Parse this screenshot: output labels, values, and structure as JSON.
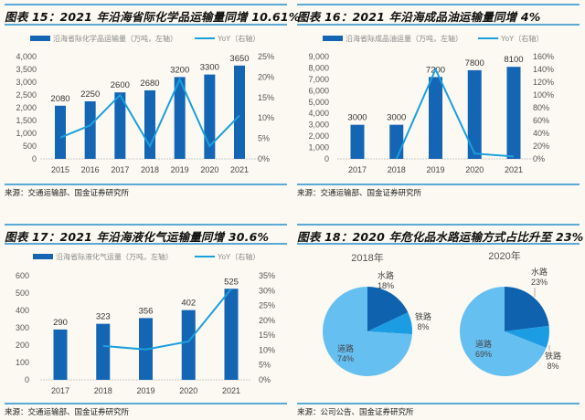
{
  "colors": {
    "bar": "#1565b5",
    "line": "#1aa0dd",
    "pie_water": "#0e62ae",
    "pie_rail": "#1c9ce2",
    "pie_road": "#66bff1",
    "rule": "#5aa9d6"
  },
  "panels": [
    {
      "title": "图表 15：2021 年沿海省际化学品运输量同增 10.61%",
      "source": "来源：交通运输部、国金证券研究所"
    },
    {
      "title": "图表 16：2021 年沿海成品油运输量同增 4%",
      "source": "来源：交通运输部、国金证券研究所"
    },
    {
      "title": "图表 17：2021 年沿海液化气运输量同增 30.6%",
      "source": "来源：交通运输部、国金证券研究所"
    },
    {
      "title": "图表 18：2020 年危化品水路运输方式占比升至 23%",
      "source": "来源：公司公告、国金证券研究所"
    }
  ],
  "chart_data": [
    {
      "type": "bar+line",
      "categories": [
        "2015",
        "2016",
        "2017",
        "2018",
        "2019",
        "2020",
        "2021"
      ],
      "series": [
        {
          "name": "沿海省际化学品运输量（万吨，左轴）",
          "type": "bar",
          "axis": "left",
          "values": [
            2080,
            2250,
            2600,
            2680,
            3200,
            3300,
            3650
          ],
          "labels": [
            "2080",
            "2250",
            "2600",
            "2680",
            "3200",
            "3300",
            "3650"
          ]
        },
        {
          "name": "YoY（右轴）",
          "type": "line",
          "axis": "right",
          "values": [
            5.2,
            8.2,
            15.6,
            3.1,
            19.4,
            3.1,
            10.6
          ]
        }
      ],
      "left_axis": {
        "range": [
          0,
          4000
        ],
        "ticks": [
          "0",
          "500",
          "1,000",
          "1,500",
          "2,000",
          "2,500",
          "3,000",
          "3,500",
          "4,000"
        ]
      },
      "right_axis": {
        "range": [
          0,
          25
        ],
        "ticks": [
          "0%",
          "5%",
          "10%",
          "15%",
          "20%",
          "25%"
        ]
      },
      "legend": "top",
      "grid": false
    },
    {
      "type": "bar+line",
      "categories": [
        "2017",
        "2018",
        "2019",
        "2020",
        "2021"
      ],
      "series": [
        {
          "name": "沿海省际成品油运量（万吨，左轴）",
          "type": "bar",
          "axis": "left",
          "values": [
            3000,
            3000,
            7200,
            7800,
            8100
          ],
          "labels": [
            "3000",
            "3000",
            "7200",
            "7800",
            "8100"
          ]
        },
        {
          "name": "YoY（右轴）",
          "type": "line",
          "axis": "right",
          "values": [
            null,
            0,
            140,
            8.3,
            3.8
          ]
        }
      ],
      "left_axis": {
        "range": [
          0,
          9000
        ],
        "ticks": [
          "0",
          "1,000",
          "2,000",
          "3,000",
          "4,000",
          "5,000",
          "6,000",
          "7,000",
          "8,000",
          "9,000"
        ]
      },
      "right_axis": {
        "range": [
          0,
          160
        ],
        "ticks": [
          "0%",
          "20%",
          "40%",
          "60%",
          "80%",
          "100%",
          "120%",
          "140%",
          "160%"
        ]
      },
      "legend": "top",
      "grid": false
    },
    {
      "type": "bar+line",
      "categories": [
        "2017",
        "2018",
        "2019",
        "2020",
        "2021"
      ],
      "series": [
        {
          "name": "沿海省际液化气运量（万吨，左轴）",
          "type": "bar",
          "axis": "left",
          "values": [
            290,
            323,
            356,
            402,
            525
          ],
          "labels": [
            "290",
            "323",
            "356",
            "402",
            "525"
          ]
        },
        {
          "name": "YoY（右轴）",
          "type": "line",
          "axis": "right",
          "values": [
            null,
            11.4,
            10.2,
            12.9,
            30.6
          ]
        }
      ],
      "left_axis": {
        "range": [
          0,
          600
        ],
        "ticks": [
          "0",
          "100",
          "200",
          "300",
          "400",
          "500",
          "600"
        ]
      },
      "right_axis": {
        "range": [
          0,
          35
        ],
        "ticks": [
          "0%",
          "5%",
          "10%",
          "15%",
          "20%",
          "25%",
          "30%",
          "35%"
        ]
      },
      "legend": "top",
      "grid": false
    },
    {
      "type": "pie",
      "pies": [
        {
          "title": "2018年",
          "slices": [
            {
              "label": "水路",
              "value": 18,
              "text": "18%"
            },
            {
              "label": "铁路",
              "value": 8,
              "text": "8%"
            },
            {
              "label": "道路",
              "value": 74,
              "text": "74%"
            }
          ]
        },
        {
          "title": "2020年",
          "slices": [
            {
              "label": "水路",
              "value": 23,
              "text": "23%"
            },
            {
              "label": "铁路",
              "value": 8,
              "text": "8%"
            },
            {
              "label": "道路",
              "value": 69,
              "text": "69%"
            }
          ]
        }
      ]
    }
  ]
}
